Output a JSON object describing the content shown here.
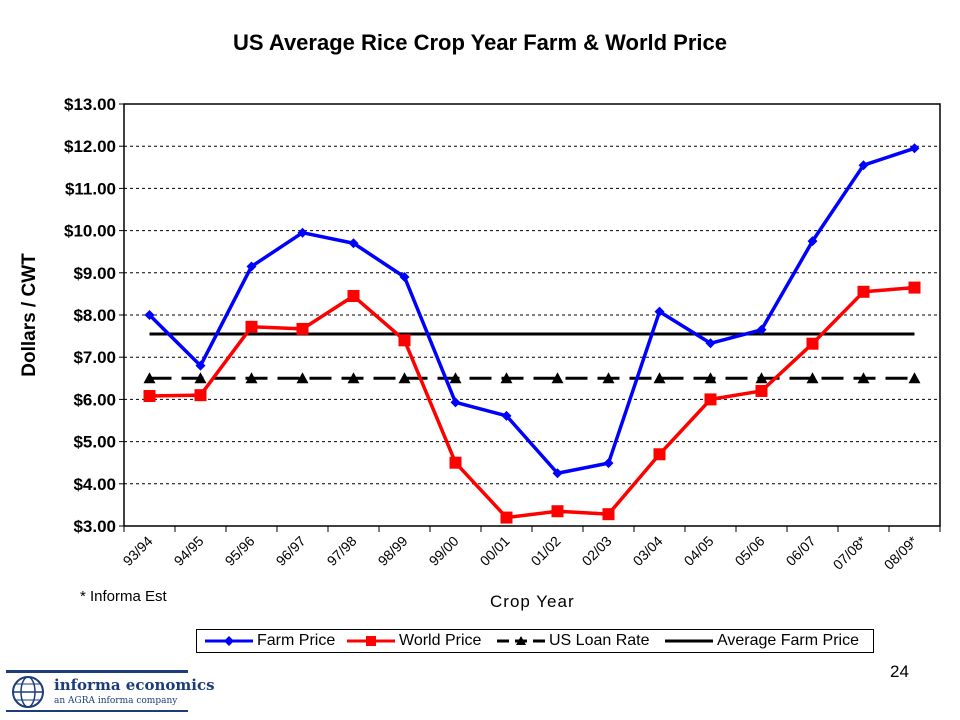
{
  "slide": {
    "footnote": "* Informa Est",
    "page_number": "24"
  },
  "logo": {
    "name": "informa economics",
    "tagline": "an AGRA informa company"
  },
  "colors": {
    "farm": "#0000ff",
    "world": "#ff0000",
    "loan": "#000000",
    "average": "#000000"
  },
  "chart_data": {
    "type": "line",
    "title": "US Average Rice Crop Year Farm & World Price",
    "xlabel": "Crop Year",
    "ylabel": "Dollars / CWT",
    "ylim": [
      3,
      13
    ],
    "ytick_labels": [
      "$3.00",
      "$4.00",
      "$5.00",
      "$6.00",
      "$7.00",
      "$8.00",
      "$9.00",
      "$10.00",
      "$11.00",
      "$12.00",
      "$13.00"
    ],
    "grid": "horizontal dotted",
    "legend_position": "bottom",
    "categories": [
      "93/94",
      "94/95",
      "95/96",
      "96/97",
      "97/98",
      "98/99",
      "99/00",
      "00/01",
      "01/02",
      "02/03",
      "03/04",
      "04/05",
      "05/06",
      "06/07",
      "07/08*",
      "08/09*"
    ],
    "series": [
      {
        "name": "Farm Price",
        "marker": "diamond",
        "values": [
          8.0,
          6.8,
          9.15,
          9.95,
          9.7,
          8.9,
          5.93,
          5.61,
          4.25,
          4.49,
          8.08,
          7.33,
          7.65,
          9.75,
          11.55,
          11.95
        ]
      },
      {
        "name": "World Price",
        "marker": "square",
        "values": [
          6.08,
          6.1,
          7.72,
          7.67,
          8.45,
          7.4,
          4.5,
          3.2,
          3.35,
          3.28,
          4.7,
          6.0,
          6.2,
          7.32,
          8.55,
          8.65
        ]
      },
      {
        "name": "US Loan Rate",
        "marker": "triangle",
        "dashed": true,
        "values": [
          6.5,
          6.5,
          6.5,
          6.5,
          6.5,
          6.5,
          6.5,
          6.5,
          6.5,
          6.5,
          6.5,
          6.5,
          6.5,
          6.5,
          6.5,
          6.5
        ]
      },
      {
        "name": "Average Farm Price",
        "marker": "none",
        "values": [
          7.55,
          7.55,
          7.55,
          7.55,
          7.55,
          7.55,
          7.55,
          7.55,
          7.55,
          7.55,
          7.55,
          7.55,
          7.55,
          7.55,
          7.55,
          7.55
        ]
      }
    ]
  }
}
